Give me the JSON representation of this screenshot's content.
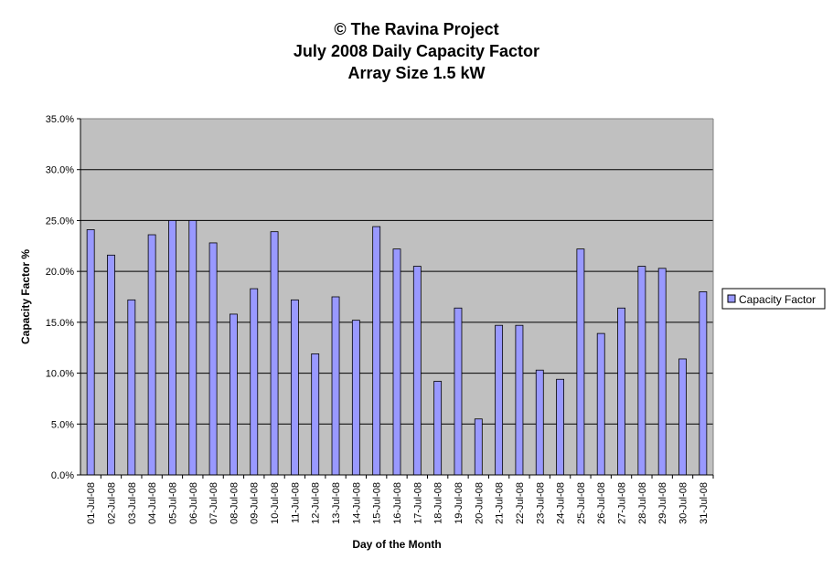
{
  "chart_data": {
    "type": "bar",
    "title_lines": [
      "© The Ravina Project",
      "July 2008 Daily Capacity Factor",
      "Array Size 1.5 kW"
    ],
    "xlabel": "Day of the Month",
    "ylabel": "Capacity Factor %",
    "ylim": [
      0,
      35
    ],
    "yticks": [
      "0.0%",
      "5.0%",
      "10.0%",
      "15.0%",
      "20.0%",
      "25.0%",
      "30.0%",
      "35.0%"
    ],
    "grid": true,
    "legend_position": "right",
    "categories": [
      "01-Jul-08",
      "02-Jul-08",
      "03-Jul-08",
      "04-Jul-08",
      "05-Jul-08",
      "06-Jul-08",
      "07-Jul-08",
      "08-Jul-08",
      "09-Jul-08",
      "10-Jul-08",
      "11-Jul-08",
      "12-Jul-08",
      "13-Jul-08",
      "14-Jul-08",
      "15-Jul-08",
      "16-Jul-08",
      "17-Jul-08",
      "18-Jul-08",
      "19-Jul-08",
      "20-Jul-08",
      "21-Jul-08",
      "22-Jul-08",
      "23-Jul-08",
      "24-Jul-08",
      "25-Jul-08",
      "26-Jul-08",
      "27-Jul-08",
      "28-Jul-08",
      "29-Jul-08",
      "30-Jul-08",
      "31-Jul-08"
    ],
    "series": [
      {
        "name": "Capacity Factor",
        "color": "#9999ff",
        "values": [
          24.1,
          21.6,
          17.2,
          23.6,
          25.0,
          25.0,
          22.8,
          15.8,
          18.3,
          23.9,
          17.2,
          11.9,
          17.5,
          15.2,
          24.4,
          22.2,
          20.5,
          9.2,
          16.4,
          5.5,
          14.7,
          14.7,
          10.3,
          9.4,
          22.2,
          13.9,
          16.4,
          20.5,
          20.3,
          11.4,
          18.0
        ]
      }
    ],
    "colors": {
      "plot_bg": "#c0c0c0",
      "grid": "#000000",
      "bar_edge": "#000000"
    }
  }
}
